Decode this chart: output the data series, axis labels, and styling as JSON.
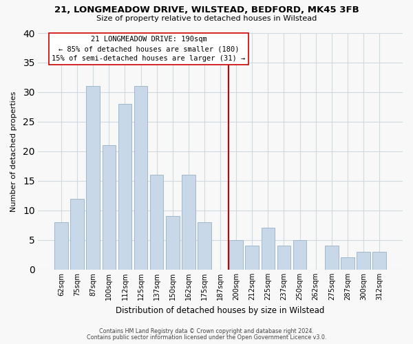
{
  "title": "21, LONGMEADOW DRIVE, WILSTEAD, BEDFORD, MK45 3FB",
  "subtitle": "Size of property relative to detached houses in Wilstead",
  "xlabel": "Distribution of detached houses by size in Wilstead",
  "ylabel": "Number of detached properties",
  "bar_labels": [
    "62sqm",
    "75sqm",
    "87sqm",
    "100sqm",
    "112sqm",
    "125sqm",
    "137sqm",
    "150sqm",
    "162sqm",
    "175sqm",
    "187sqm",
    "200sqm",
    "212sqm",
    "225sqm",
    "237sqm",
    "250sqm",
    "262sqm",
    "275sqm",
    "287sqm",
    "300sqm",
    "312sqm"
  ],
  "bar_heights": [
    8,
    12,
    31,
    21,
    28,
    31,
    16,
    9,
    16,
    8,
    0,
    5,
    4,
    7,
    4,
    5,
    0,
    4,
    2,
    3,
    3
  ],
  "bar_color": "#c8d8e8",
  "bar_edge_color": "#a0b8cc",
  "vline_x_index": 10.5,
  "vline_color": "#cc0000",
  "annotation_title": "21 LONGMEADOW DRIVE: 190sqm",
  "annotation_line1": "← 85% of detached houses are smaller (180)",
  "annotation_line2": "15% of semi-detached houses are larger (31) →",
  "annotation_box_color": "#ffffff",
  "annotation_box_edge": "#cc0000",
  "ylim": [
    0,
    40
  ],
  "yticks": [
    0,
    5,
    10,
    15,
    20,
    25,
    30,
    35,
    40
  ],
  "grid_color": "#d0d8e0",
  "footer1": "Contains HM Land Registry data © Crown copyright and database right 2024.",
  "footer2": "Contains public sector information licensed under the Open Government Licence v3.0.",
  "bg_color": "#f8f8f8"
}
